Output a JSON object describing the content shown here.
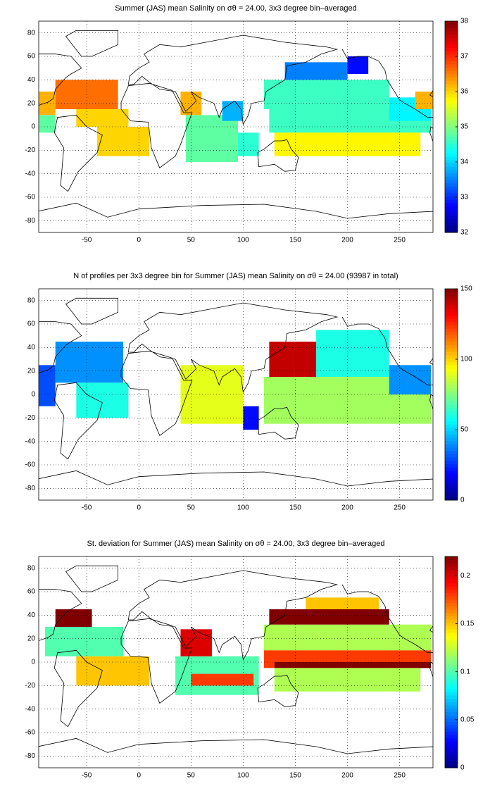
{
  "chart_data": [
    {
      "type": "heatmap",
      "colormap": "jet",
      "grid": true,
      "title": "Summer (JAS) mean Salinity on σθ = 24.00, 3x3 degree bin–averaged",
      "xlim": [
        -96,
        282
      ],
      "ylim": [
        -90,
        90
      ],
      "xticks": [
        -50,
        0,
        50,
        100,
        150,
        200,
        250
      ],
      "yticks": [
        -80,
        -60,
        -40,
        -20,
        0,
        20,
        40,
        60,
        80
      ],
      "clim": [
        32,
        38
      ],
      "cticks": [
        32,
        33,
        34,
        35,
        36,
        37,
        38
      ],
      "cells": [
        {
          "lon": [
            -96,
            -80
          ],
          "lat": [
            -5,
            10
          ],
          "value": 34.8
        },
        {
          "lon": [
            -96,
            -80
          ],
          "lat": [
            10,
            30
          ],
          "value": 36.2
        },
        {
          "lon": [
            -80,
            -20
          ],
          "lat": [
            15,
            40
          ],
          "value": 36.6
        },
        {
          "lon": [
            -60,
            -10
          ],
          "lat": [
            0,
            15
          ],
          "value": 36.0
        },
        {
          "lon": [
            -40,
            10
          ],
          "lat": [
            -25,
            0
          ],
          "value": 36.0
        },
        {
          "lon": [
            45,
            95
          ],
          "lat": [
            -30,
            10
          ],
          "value": 34.8
        },
        {
          "lon": [
            40,
            60
          ],
          "lat": [
            10,
            30
          ],
          "value": 36.2
        },
        {
          "lon": [
            80,
            100
          ],
          "lat": [
            5,
            22
          ],
          "value": 33.8
        },
        {
          "lon": [
            95,
            115
          ],
          "lat": [
            -25,
            -5
          ],
          "value": 34.5
        },
        {
          "lon": [
            120,
            240
          ],
          "lat": [
            15,
            40
          ],
          "value": 34.6
        },
        {
          "lon": [
            140,
            200
          ],
          "lat": [
            40,
            55
          ],
          "value": 33.5
        },
        {
          "lon": [
            200,
            220
          ],
          "lat": [
            45,
            60
          ],
          "value": 32.8
        },
        {
          "lon": [
            125,
            280
          ],
          "lat": [
            -5,
            15
          ],
          "value": 34.6
        },
        {
          "lon": [
            130,
            270
          ],
          "lat": [
            -25,
            -5
          ],
          "value": 35.8
        },
        {
          "lon": [
            240,
            280
          ],
          "lat": [
            5,
            25
          ],
          "value": 34.2
        },
        {
          "lon": [
            265,
            282
          ],
          "lat": [
            15,
            30
          ],
          "value": 36.2
        }
      ]
    },
    {
      "type": "heatmap",
      "colormap": "jet",
      "grid": true,
      "title": "N of profiles per 3x3 degree bin for Summer (JAS) mean Salinity on σθ = 24.00 (93987 in total)",
      "xlim": [
        -96,
        282
      ],
      "ylim": [
        -90,
        90
      ],
      "xticks": [
        -50,
        0,
        50,
        100,
        150,
        200,
        250
      ],
      "yticks": [
        -80,
        -60,
        -40,
        -20,
        0,
        20,
        40,
        60,
        80
      ],
      "clim": [
        0,
        150
      ],
      "cticks": [
        0,
        50,
        100,
        150
      ],
      "cells": [
        {
          "lon": [
            -96,
            -80
          ],
          "lat": [
            -10,
            25
          ],
          "value": 30
        },
        {
          "lon": [
            -80,
            -15
          ],
          "lat": [
            10,
            45
          ],
          "value": 40
        },
        {
          "lon": [
            -60,
            -10
          ],
          "lat": [
            -20,
            10
          ],
          "value": 60
        },
        {
          "lon": [
            40,
            100
          ],
          "lat": [
            -25,
            25
          ],
          "value": 90
        },
        {
          "lon": [
            100,
            115
          ],
          "lat": [
            -30,
            -10
          ],
          "value": 20
        },
        {
          "lon": [
            120,
            280
          ],
          "lat": [
            -25,
            15
          ],
          "value": 80
        },
        {
          "lon": [
            170,
            240
          ],
          "lat": [
            15,
            55
          ],
          "value": 60
        },
        {
          "lon": [
            125,
            170
          ],
          "lat": [
            15,
            45
          ],
          "value": 140
        },
        {
          "lon": [
            240,
            280
          ],
          "lat": [
            0,
            25
          ],
          "value": 40
        }
      ]
    },
    {
      "type": "heatmap",
      "colormap": "jet",
      "grid": true,
      "title": "St. deviation for Summer (JAS) mean Salinity on σθ = 24.00, 3x3 degree bin–averaged",
      "xlim": [
        -96,
        282
      ],
      "ylim": [
        -90,
        90
      ],
      "xticks": [
        -50,
        0,
        50,
        100,
        150,
        200,
        250
      ],
      "yticks": [
        -80,
        -60,
        -40,
        -20,
        0,
        20,
        40,
        60,
        80
      ],
      "clim": [
        0,
        0.22
      ],
      "cticks": [
        0,
        0.05,
        0.1,
        0.15,
        0.2
      ],
      "cells": [
        {
          "lon": [
            -90,
            -15
          ],
          "lat": [
            5,
            30
          ],
          "value": 0.1
        },
        {
          "lon": [
            -80,
            -45
          ],
          "lat": [
            30,
            45
          ],
          "value": 0.22
        },
        {
          "lon": [
            -60,
            10
          ],
          "lat": [
            -20,
            5
          ],
          "value": 0.15
        },
        {
          "lon": [
            35,
            115
          ],
          "lat": [
            -28,
            5
          ],
          "value": 0.1
        },
        {
          "lon": [
            50,
            110
          ],
          "lat": [
            -20,
            -10
          ],
          "value": 0.18
        },
        {
          "lon": [
            40,
            70
          ],
          "lat": [
            5,
            28
          ],
          "value": 0.2
        },
        {
          "lon": [
            120,
            280
          ],
          "lat": [
            10,
            32
          ],
          "value": 0.12
        },
        {
          "lon": [
            125,
            240
          ],
          "lat": [
            32,
            45
          ],
          "value": 0.22
        },
        {
          "lon": [
            160,
            230
          ],
          "lat": [
            45,
            55
          ],
          "value": 0.15
        },
        {
          "lon": [
            120,
            280
          ],
          "lat": [
            -5,
            10
          ],
          "value": 0.18
        },
        {
          "lon": [
            130,
            280
          ],
          "lat": [
            -5,
            0
          ],
          "value": 0.22
        },
        {
          "lon": [
            130,
            270
          ],
          "lat": [
            -25,
            -5
          ],
          "value": 0.12
        }
      ]
    }
  ]
}
